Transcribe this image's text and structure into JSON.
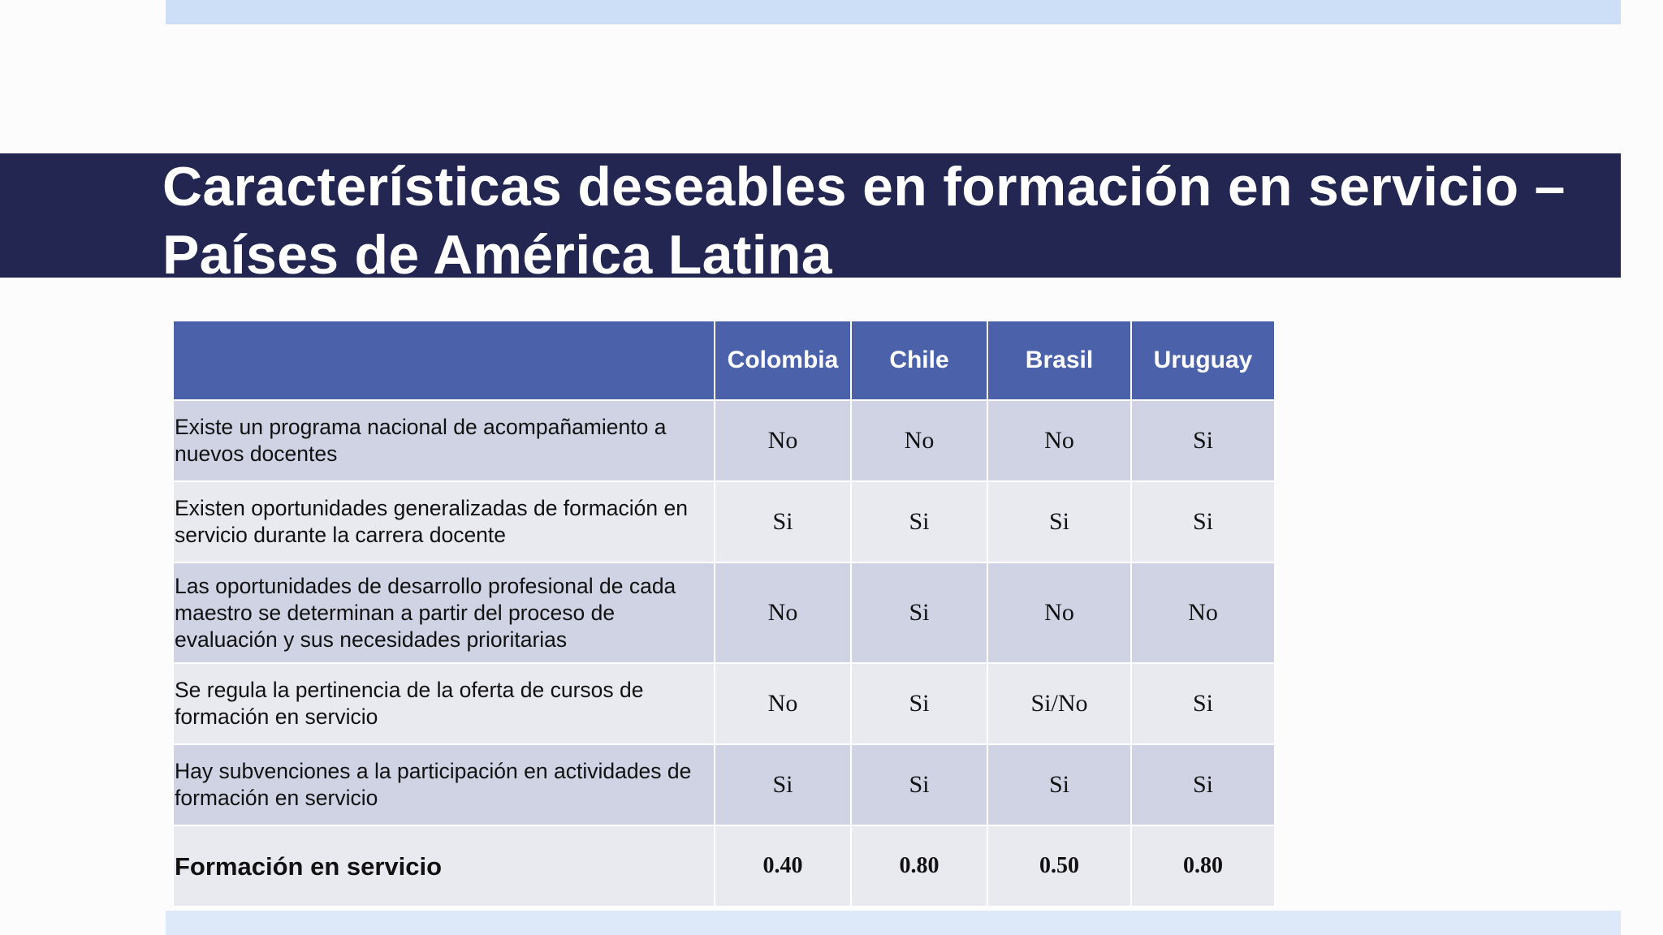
{
  "slide": {
    "title_line1": "Características deseables en formación en servicio –",
    "title_line2": "Países de América Latina"
  },
  "table": {
    "header_blank": "",
    "columns": [
      "Colombia",
      "Chile",
      "Brasil",
      "Uruguay"
    ],
    "rows": [
      {
        "label": "Existe un programa nacional de acompañamiento a nuevos docentes",
        "values": [
          "No",
          "No",
          "No",
          "Si"
        ]
      },
      {
        "label": "Existen oportunidades generalizadas de formación en servicio durante la carrera docente",
        "values": [
          "Si",
          "Si",
          "Si",
          "Si"
        ]
      },
      {
        "label": "Las oportunidades de desarrollo profesional de cada maestro se determinan a partir del proceso de evaluación y sus necesidades prioritarias",
        "values": [
          "No",
          "Si",
          "No",
          "No"
        ]
      },
      {
        "label": "Se regula la pertinencia de la oferta de cursos de formación en servicio",
        "values": [
          "No",
          "Si",
          "Si/No",
          "Si"
        ]
      },
      {
        "label": "Hay subvenciones a la participación en actividades de formación en servicio",
        "values": [
          "Si",
          "Si",
          "Si",
          "Si"
        ]
      }
    ],
    "total": {
      "label": "Formación en servicio",
      "values": [
        "0.40",
        "0.80",
        "0.50",
        "0.80"
      ]
    }
  },
  "colors": {
    "title_band": "#232650",
    "header_fill": "#4b62ab",
    "row_dark": "#d0d3e4",
    "row_light": "#e9e9f0",
    "top_strip": "#cddff6"
  }
}
